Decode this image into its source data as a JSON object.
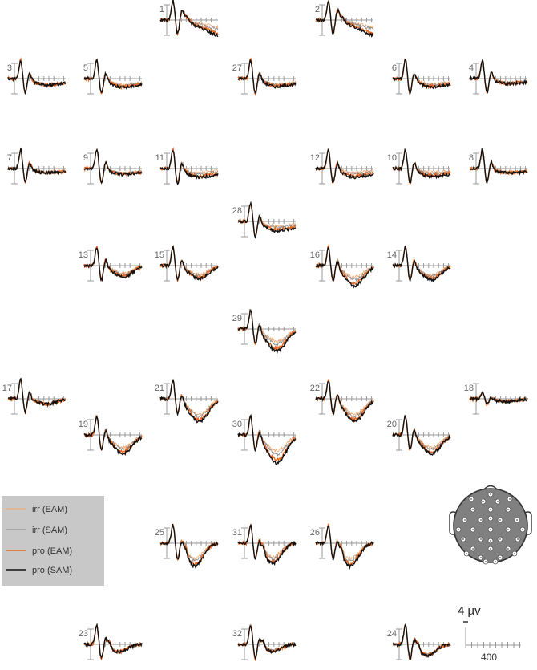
{
  "chart_data": {
    "type": "line",
    "title": "",
    "colors": {
      "irr_eam": "#f2a66a",
      "irr_sam": "#888888",
      "pro_eam": "#e8661c",
      "pro_sam": "#111111",
      "axis": "#999999",
      "legend_bg": "#c8c8c8",
      "head_fill": "#808080"
    },
    "series": [
      {
        "name": "irr (EAM)",
        "key": "irr_eam"
      },
      {
        "name": "irr (SAM)",
        "key": "irr_sam"
      },
      {
        "name": "pro (EAM)",
        "key": "pro_eam"
      },
      {
        "name": "pro (SAM)",
        "key": "pro_sam"
      }
    ],
    "channels": [
      {
        "label": "1",
        "profile": "n1",
        "depth": 1.8,
        "spread": 1.0
      },
      {
        "label": "2",
        "profile": "n1",
        "depth": 1.8,
        "spread": 1.0
      },
      {
        "label": "3",
        "profile": "neg",
        "depth": 0.9,
        "spread": 0.1
      },
      {
        "label": "5",
        "profile": "neg",
        "depth": 1.2,
        "spread": 0.5
      },
      {
        "label": "27",
        "profile": "neg",
        "depth": 1.1,
        "spread": 0.5
      },
      {
        "label": "6",
        "profile": "neg",
        "depth": 1.2,
        "spread": 0.7
      },
      {
        "label": "4",
        "profile": "neg",
        "depth": 0.7,
        "spread": 0.3
      },
      {
        "label": "7",
        "profile": "neg",
        "depth": 0.6,
        "spread": 0.2
      },
      {
        "label": "9",
        "profile": "neg",
        "depth": 0.8,
        "spread": 0.4
      },
      {
        "label": "11",
        "profile": "neg",
        "depth": 1.2,
        "spread": 1.0
      },
      {
        "label": "12",
        "profile": "neg",
        "depth": 1.2,
        "spread": 1.0
      },
      {
        "label": "10",
        "profile": "neg",
        "depth": 1.1,
        "spread": 0.9
      },
      {
        "label": "8",
        "profile": "neg",
        "depth": 0.6,
        "spread": 0.2
      },
      {
        "label": "28",
        "profile": "neg",
        "depth": 1.3,
        "spread": 0.9
      },
      {
        "label": "13",
        "profile": "p3",
        "depth": 1.3,
        "spread": 0.6
      },
      {
        "label": "15",
        "profile": "p3",
        "depth": 1.5,
        "spread": 0.6
      },
      {
        "label": "16",
        "profile": "p3",
        "depth": 2.3,
        "spread": 0.8
      },
      {
        "label": "14",
        "profile": "p3",
        "depth": 1.6,
        "spread": 0.6
      },
      {
        "label": "29",
        "profile": "p3",
        "depth": 2.5,
        "spread": 0.8
      },
      {
        "label": "17",
        "profile": "p3",
        "depth": 0.6,
        "spread": 0.2
      },
      {
        "label": "21",
        "profile": "p3",
        "depth": 2.6,
        "spread": 0.6
      },
      {
        "label": "22",
        "profile": "p3",
        "depth": 2.6,
        "spread": 0.6
      },
      {
        "label": "18",
        "profile": "flat",
        "depth": 0.3,
        "spread": 0.1
      },
      {
        "label": "19",
        "profile": "p3",
        "depth": 2.1,
        "spread": 0.6
      },
      {
        "label": "30",
        "profile": "p3",
        "depth": 3.2,
        "spread": 0.8
      },
      {
        "label": "20",
        "profile": "p3",
        "depth": 2.1,
        "spread": 0.6
      },
      {
        "label": "25",
        "profile": "occ",
        "depth": 2.6,
        "spread": 0.6
      },
      {
        "label": "31",
        "profile": "occ",
        "depth": 2.3,
        "spread": 0.6
      },
      {
        "label": "26",
        "profile": "occ",
        "depth": 2.6,
        "spread": 0.6
      },
      {
        "label": "23",
        "profile": "occ",
        "depth": 0.9,
        "spread": 0.3
      },
      {
        "label": "32",
        "profile": "occ",
        "depth": 0.8,
        "spread": 0.3
      },
      {
        "label": "24",
        "profile": "occ",
        "depth": 1.3,
        "spread": 0.3
      }
    ],
    "scale_bar": {
      "amplitude_label": "4 µv",
      "time_label": "400"
    },
    "head_map": {
      "electrode_count": 32
    }
  }
}
